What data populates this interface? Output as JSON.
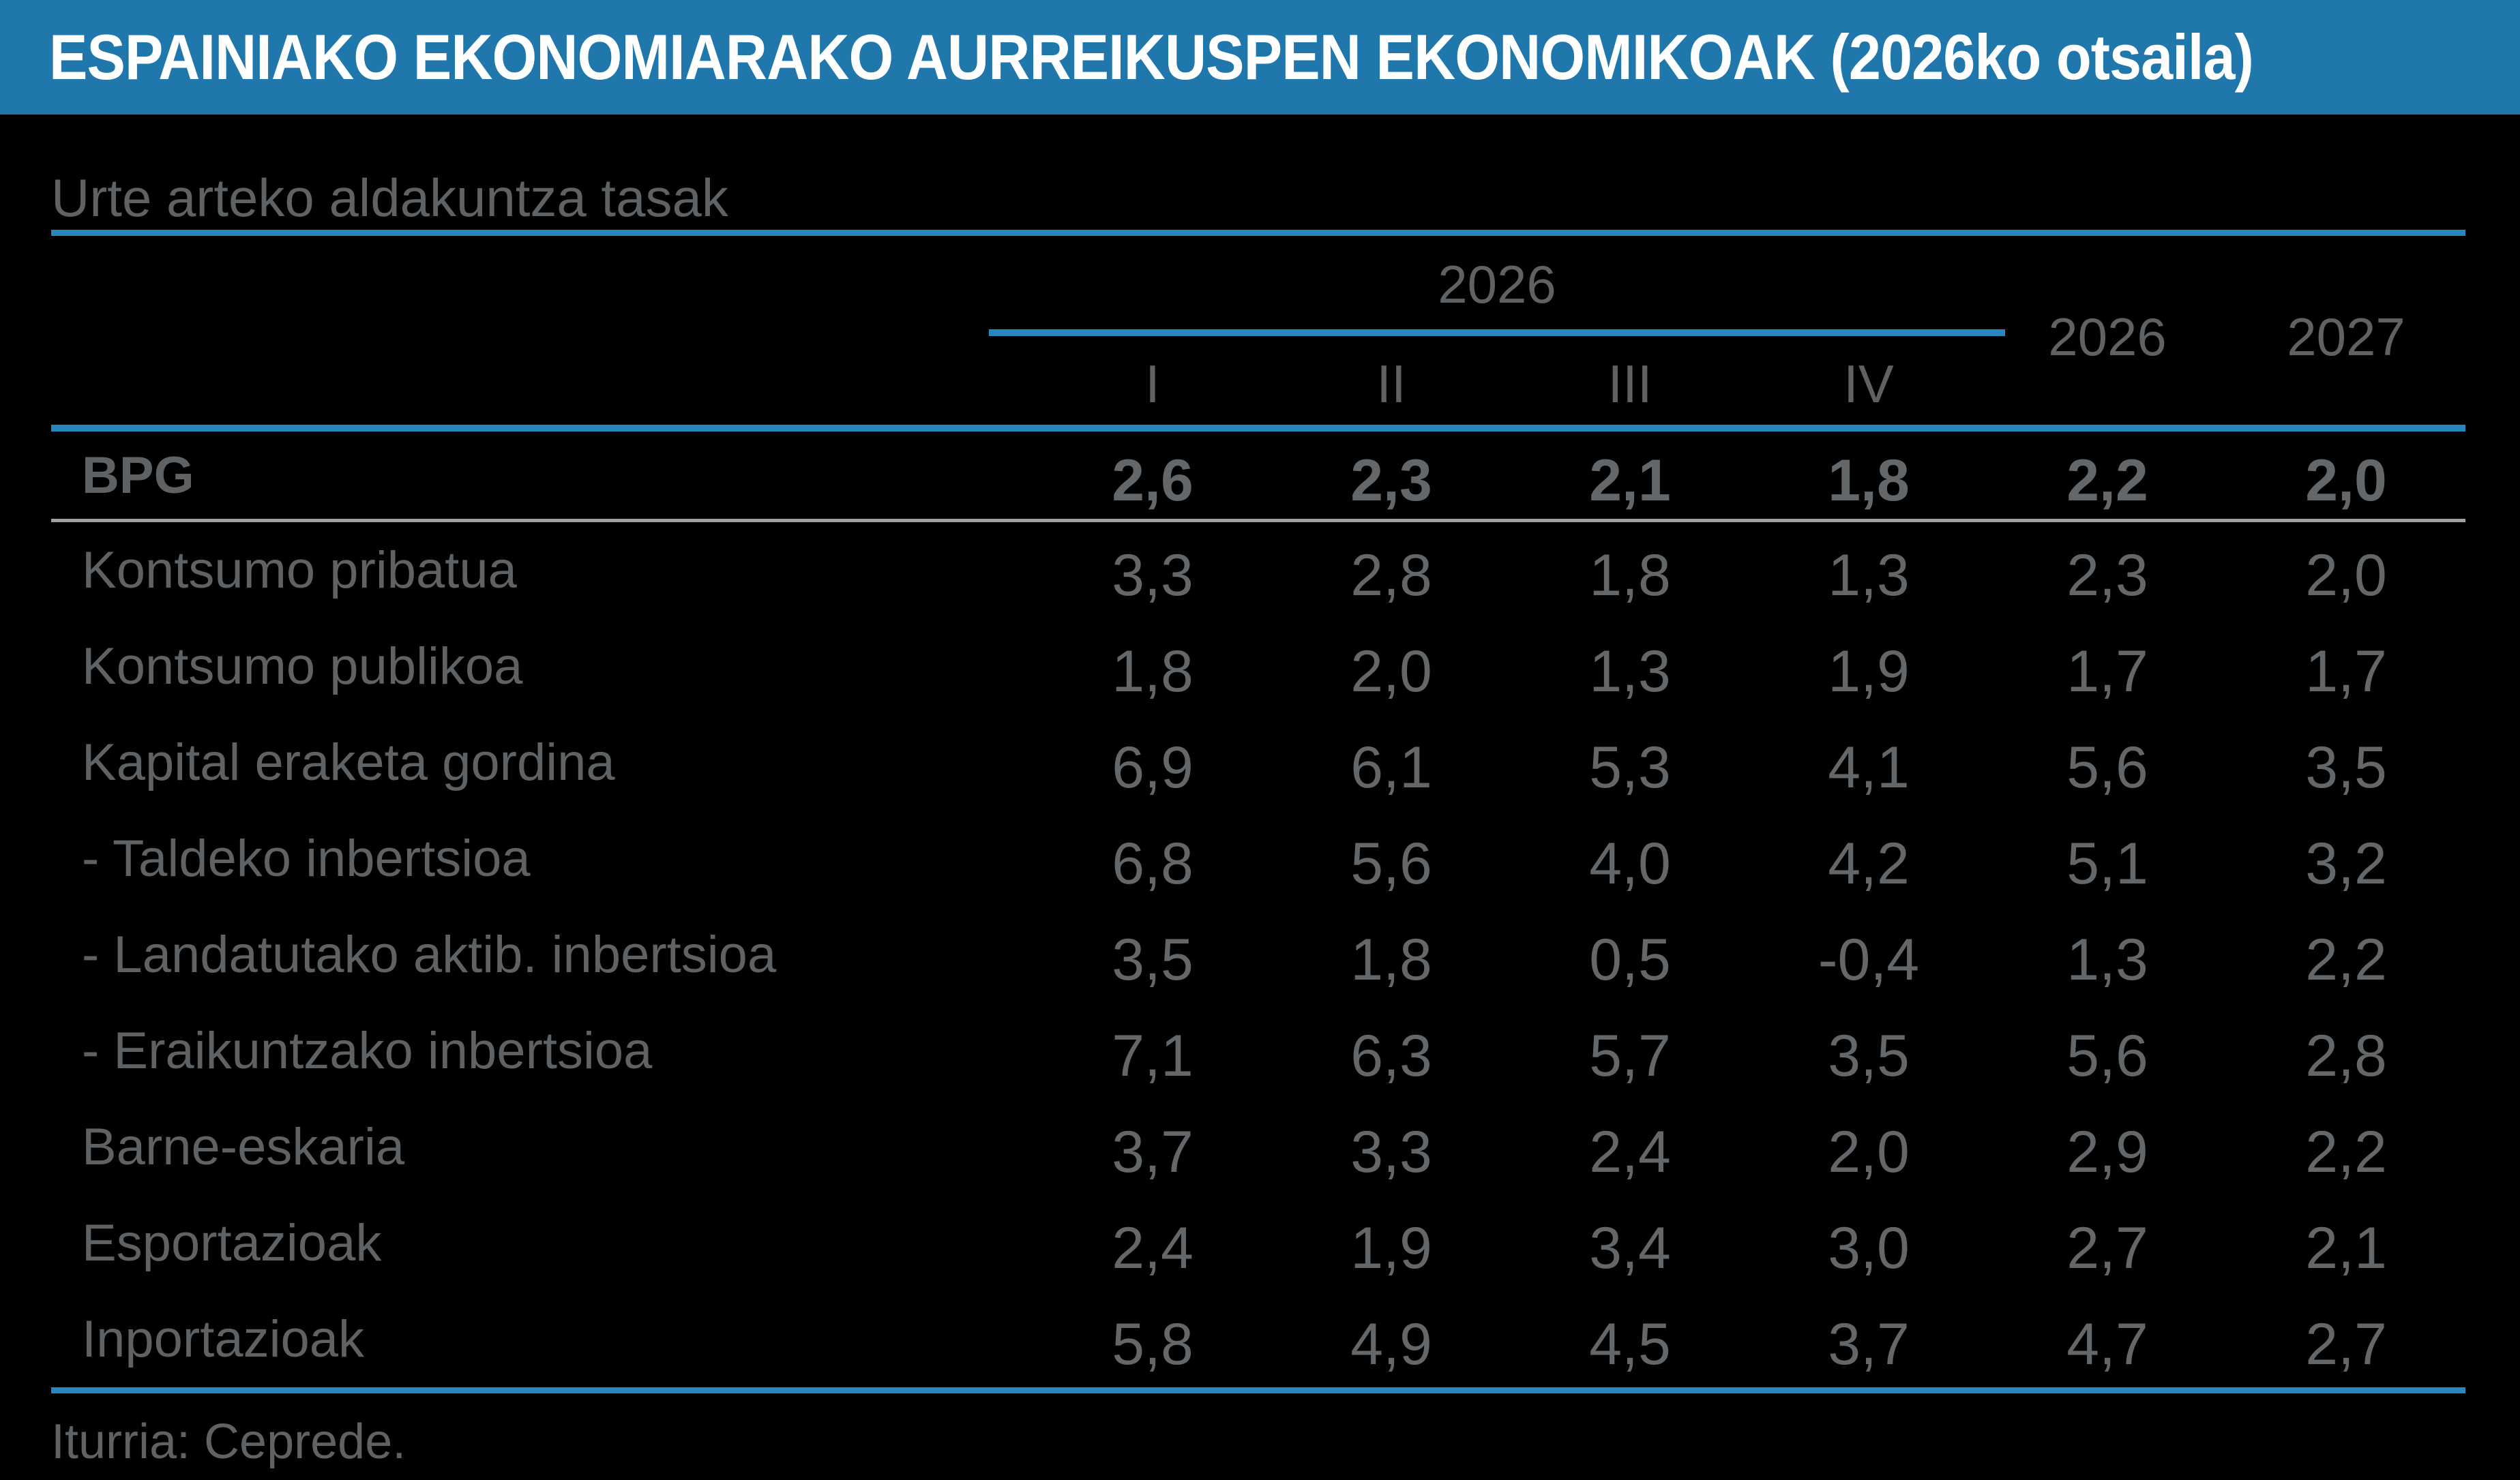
{
  "title": "ESPAINIAKO EKONOMIARAKO AURREIKUSPEN EKONOMIKOAK (2026ko otsaila)",
  "subtitle": "Urte arteko aldakuntza tasak",
  "table": {
    "group_header": "2026",
    "quarter_headers": [
      "I",
      "II",
      "III",
      "IV"
    ],
    "year_headers": [
      "2026",
      "2027"
    ],
    "rows": [
      {
        "label": "BPG",
        "bold": true,
        "separator_after": true,
        "values": [
          "2,6",
          "2,3",
          "2,1",
          "1,8",
          "2,2",
          "2,0"
        ]
      },
      {
        "label": "Kontsumo pribatua",
        "values": [
          "3,3",
          "2,8",
          "1,8",
          "1,3",
          "2,3",
          "2,0"
        ]
      },
      {
        "label": "Kontsumo publikoa",
        "values": [
          "1,8",
          "2,0",
          "1,3",
          "1,9",
          "1,7",
          "1,7"
        ]
      },
      {
        "label": "Kapital eraketa gordina",
        "values": [
          "6,9",
          "6,1",
          "5,3",
          "4,1",
          "5,6",
          "3,5"
        ]
      },
      {
        "label": "- Taldeko inbertsioa",
        "values": [
          "6,8",
          "5,6",
          "4,0",
          "4,2",
          "5,1",
          "3,2"
        ]
      },
      {
        "label": "- Landatutako aktib. inbertsioa",
        "values": [
          "3,5",
          "1,8",
          "0,5",
          "-0,4",
          "1,3",
          "2,2"
        ]
      },
      {
        "label": "- Eraikuntzako inbertsioa",
        "values": [
          "7,1",
          "6,3",
          "5,7",
          "3,5",
          "5,6",
          "2,8"
        ]
      },
      {
        "label": "Barne-eskaria",
        "values": [
          "3,7",
          "3,3",
          "2,4",
          "2,0",
          "2,9",
          "2,2"
        ]
      },
      {
        "label": "Esportazioak",
        "values": [
          "2,4",
          "1,9",
          "3,4",
          "3,0",
          "2,7",
          "2,1"
        ]
      },
      {
        "label": "Inportazioak",
        "values": [
          "5,8",
          "4,9",
          "4,5",
          "3,7",
          "4,7",
          "2,7"
        ]
      }
    ]
  },
  "footer": "Iturria: Ceprede.",
  "colors": {
    "background": "#000000",
    "header_blue": "#2077AB",
    "accent_blue": "#2A86BE",
    "title_white": "#FFFFFF",
    "text_gray": "#5E6265",
    "value_gray": "#63676A",
    "rule_gray": "#9EA1A4"
  }
}
